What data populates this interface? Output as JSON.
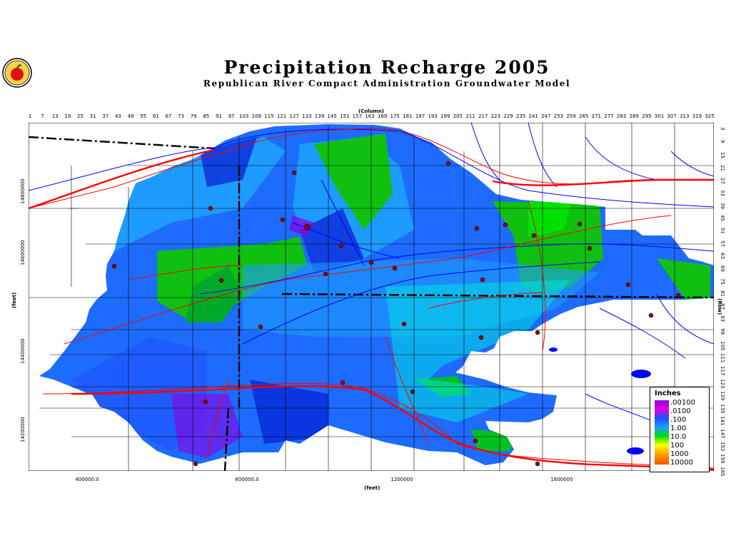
{
  "title": "Precipitation Recharge 2005",
  "subtitle": "Republican River Compact Administration Groundwater Model",
  "logo_icon": "apple-seal-icon",
  "axes": {
    "column_label": "(Column)",
    "row_label": "(Row)",
    "x_label": "(feet)",
    "y_label": "(feet)",
    "column_ticks": [
      "1",
      "7",
      "13",
      "19",
      "25",
      "31",
      "37",
      "43",
      "49",
      "55",
      "61",
      "67",
      "73",
      "79",
      "85",
      "91",
      "97",
      "103",
      "109",
      "115",
      "121",
      "127",
      "133",
      "139",
      "145",
      "151",
      "157",
      "163",
      "169",
      "175",
      "181",
      "187",
      "193",
      "199",
      "205",
      "211",
      "217",
      "223",
      "229",
      "235",
      "241",
      "247",
      "253",
      "259",
      "265",
      "271",
      "277",
      "283",
      "289",
      "295",
      "301",
      "307",
      "313",
      "319",
      "325"
    ],
    "row_ticks": [
      "3",
      "9",
      "15",
      "21",
      "27",
      "33",
      "39",
      "45",
      "51",
      "57",
      "63",
      "69",
      "75",
      "81",
      "87",
      "93",
      "99",
      "105",
      "111",
      "117",
      "123",
      "129",
      "135",
      "141",
      "147",
      "153",
      "159",
      "165"
    ],
    "x_ticks": [
      "400000.0",
      "800000.0",
      "1200000",
      "1600000"
    ],
    "y_ticks": [
      "14800000",
      "14600000",
      "14400000",
      "14200000"
    ]
  },
  "legend": {
    "title": "Inches",
    "labels": [
      ".00100",
      ".0100",
      ".100",
      "1.00",
      "10.0",
      "100",
      "1000",
      "10000"
    ],
    "colors": [
      "#8a00e0",
      "#e000e0",
      "#1e50ff",
      "#1e9bff",
      "#00e000",
      "#ffff00",
      "#ffa000",
      "#ff5000"
    ]
  },
  "colors": {
    "boundary": "#000000",
    "roads": "#ff0000",
    "rivers": "#0000ff",
    "counties": "#000000"
  }
}
